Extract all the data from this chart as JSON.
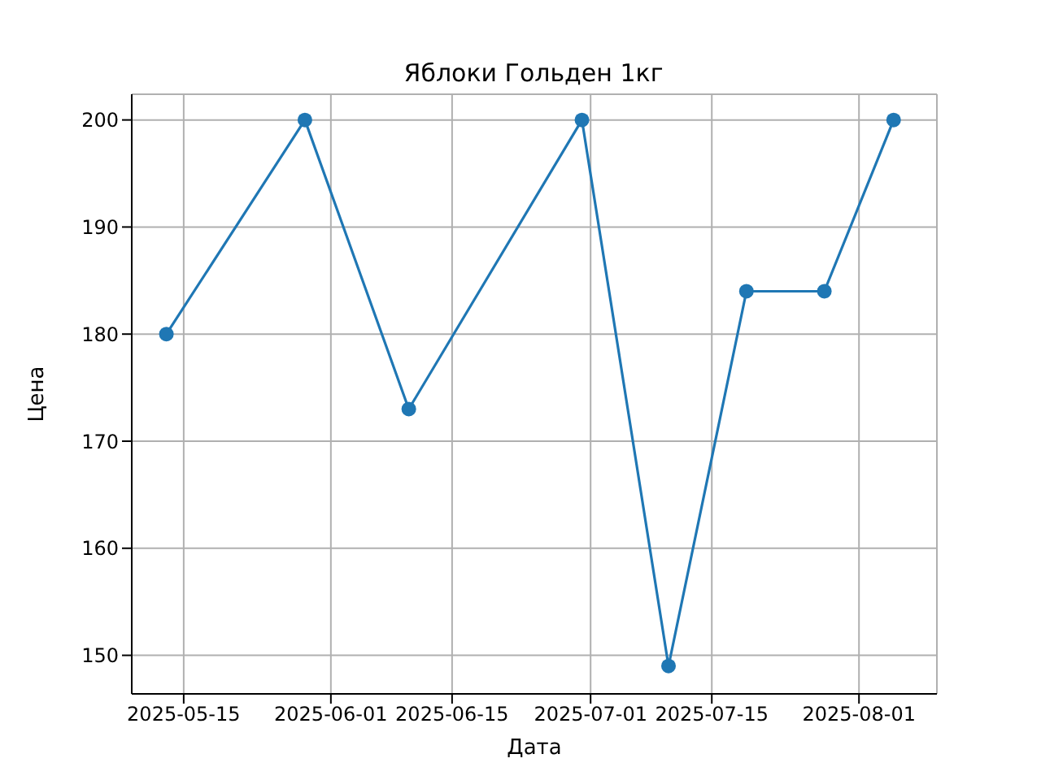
{
  "chart_data": {
    "type": "line",
    "title": "Яблоки Гольден 1кг",
    "xlabel": "Дата",
    "ylabel": "Цена",
    "x": [
      "2025-05-13",
      "2025-05-29",
      "2025-06-10",
      "2025-06-30",
      "2025-07-10",
      "2025-07-19",
      "2025-07-28",
      "2025-08-05"
    ],
    "series": [
      {
        "color": "#1f77b4",
        "values": [
          180,
          200,
          173,
          200,
          149,
          184,
          184,
          200
        ]
      }
    ],
    "xlim": [
      "2025-05-09",
      "2025-08-10"
    ],
    "xticks": [
      "2025-05-15",
      "2025-06-01",
      "2025-06-15",
      "2025-07-01",
      "2025-07-15",
      "2025-08-01"
    ],
    "ylim": [
      146.4,
      202.4
    ],
    "yticks": [
      150,
      160,
      170,
      180,
      190,
      200
    ],
    "grid": true,
    "marker": "circle",
    "line_style": "solid",
    "legend": false
  }
}
